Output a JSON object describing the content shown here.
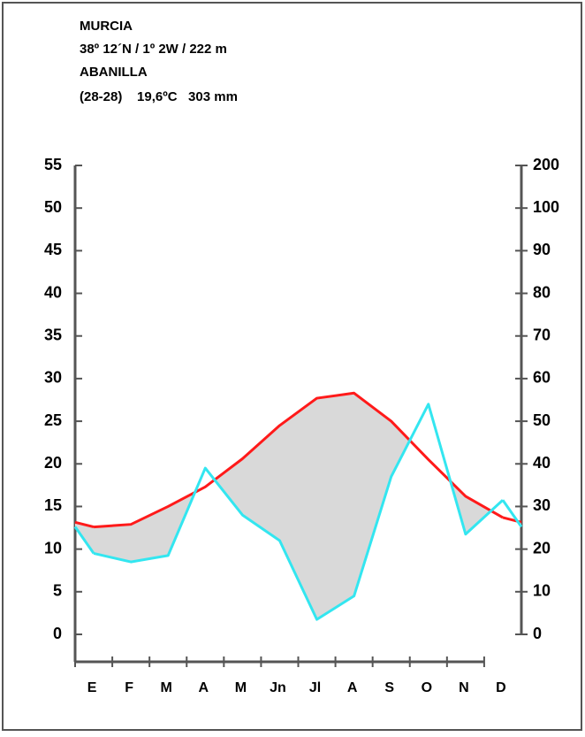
{
  "chart_data": {
    "type": "climograph",
    "header_lines": [
      "MURCIA",
      "38º 12´N / 1º 2W / 222 m",
      "ABANILLA",
      "(28-28)    19,6ºC   303 mm"
    ],
    "categories": [
      "E",
      "F",
      "M",
      "A",
      "M",
      "Jn",
      "Jl",
      "A",
      "S",
      "O",
      "N",
      "D"
    ],
    "series": [
      {
        "color": "#ff1a1a",
        "axis": "y",
        "values": [
          12.6,
          12.9,
          15.0,
          17.3,
          20.6,
          24.5,
          27.7,
          28.3,
          25.0,
          20.5,
          16.2,
          13.7
        ]
      },
      {
        "color": "#33e6f0",
        "axis": "y2",
        "values": [
          19,
          17,
          18.5,
          39,
          28,
          22,
          3.5,
          9,
          37,
          54,
          23.5,
          31.5
        ]
      }
    ],
    "dry_fill": "#d9d9d9",
    "ylim": [
      0,
      55
    ],
    "yticks": [
      0,
      5,
      10,
      15,
      20,
      25,
      30,
      35,
      40,
      45,
      50,
      55
    ],
    "y2lim": [
      0,
      200
    ],
    "y2ticks": [
      0,
      10,
      20,
      30,
      40,
      50,
      60,
      70,
      80,
      90,
      100,
      200
    ],
    "y2_compress_above": 100,
    "y2_compress_factor": 10
  }
}
